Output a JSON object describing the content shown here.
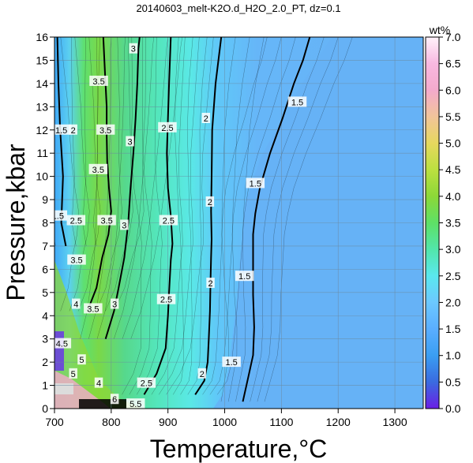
{
  "chart_data": {
    "type": "heatmap",
    "title": "20140603_melt-K2O.d_H2O_2.0_PT, dz=0.1",
    "xlabel": "Temperature,°C",
    "ylabel": "Pressure,kbar",
    "xlim": [
      700,
      1350
    ],
    "ylim": [
      0,
      16
    ],
    "x_ticks": [
      "700",
      "800",
      "900",
      "1000",
      "1100",
      "1200",
      "1300"
    ],
    "y_ticks": [
      "0",
      "1",
      "2",
      "3",
      "4",
      "5",
      "6",
      "7",
      "8",
      "9",
      "10",
      "11",
      "12",
      "13",
      "14",
      "15",
      "16"
    ],
    "grid": true,
    "colorbar": {
      "label": "wt%",
      "range": [
        0,
        7
      ],
      "ticks": [
        "0.0",
        "0.5",
        "1.0",
        "1.5",
        "2.0",
        "2.5",
        "3.0",
        "3.5",
        "4.0",
        "4.5",
        "5.0",
        "5.5",
        "6.0",
        "6.5",
        "7.0"
      ],
      "colors": [
        "#6a1ee6",
        "#3a6ae0",
        "#3a9ef2",
        "#5aaeff",
        "#6cc8ff",
        "#5ae8ee",
        "#52e6aa",
        "#5ee066",
        "#8cd838",
        "#bce040",
        "#e6d85e",
        "#f2c49a",
        "#f4aacc",
        "#f8b8e0",
        "#fff2fa"
      ]
    },
    "contours": [
      {
        "level": 1.5,
        "points": [
          [
            1032,
            0.3
          ],
          [
            1042,
            1.4
          ],
          [
            1050,
            2.3
          ],
          [
            1052,
            3.5
          ],
          [
            1050,
            4.9
          ],
          [
            1050,
            6.3
          ],
          [
            1050,
            7.5
          ],
          [
            1054,
            8.4
          ],
          [
            1062,
            9.5
          ],
          [
            1080,
            11.0
          ],
          [
            1102,
            12.5
          ],
          [
            1122,
            14.0
          ],
          [
            1138,
            15.0
          ],
          [
            1150,
            16
          ]
        ]
      },
      {
        "level": 2.0,
        "points": [
          [
            948,
            0.6
          ],
          [
            964,
            1.2
          ],
          [
            970,
            2.0
          ],
          [
            972,
            3.0
          ],
          [
            974,
            4.2
          ],
          [
            975,
            5.5
          ],
          [
            976,
            6.5
          ],
          [
            977,
            7.3
          ],
          [
            976,
            8.5
          ],
          [
            977,
            10.0
          ],
          [
            978,
            12.0
          ],
          [
            984,
            14.0
          ],
          [
            994,
            16
          ]
        ]
      },
      {
        "level": 2.5,
        "points": [
          [
            858,
            0.6
          ],
          [
            880,
            1.5
          ],
          [
            896,
            2.6
          ],
          [
            900,
            4.0
          ],
          [
            902,
            5.0
          ],
          [
            905,
            6.4
          ],
          [
            908,
            7.1
          ],
          [
            905,
            8.3
          ],
          [
            900,
            9.5
          ],
          [
            898,
            11.0
          ],
          [
            900,
            12.5
          ],
          [
            902,
            14.0
          ],
          [
            905,
            16
          ]
        ]
      },
      {
        "level": 3.0,
        "points": [
          [
            790,
            3.0
          ],
          [
            805,
            4.2
          ],
          [
            813,
            5.2
          ],
          [
            823,
            6.5
          ],
          [
            830,
            8.0
          ],
          [
            834,
            9.5
          ],
          [
            839,
            11.0
          ],
          [
            843,
            12.5
          ],
          [
            846,
            14.0
          ],
          [
            848,
            15.5
          ],
          [
            850,
            16
          ]
        ]
      },
      {
        "level": 3.5,
        "points": [
          [
            758,
            4.2
          ],
          [
            774,
            5.2
          ],
          [
            784,
            6.5
          ],
          [
            795,
            7.5
          ],
          [
            800,
            8.5
          ],
          [
            796,
            9.5
          ],
          [
            793,
            10.6
          ],
          [
            792,
            11.8
          ],
          [
            792,
            13.0
          ],
          [
            789,
            14.5
          ],
          [
            786,
            16
          ]
        ]
      },
      {
        "level": 1.5,
        "points": [
          [
            705,
            16
          ],
          [
            707,
            14.0
          ],
          [
            710,
            12.0
          ],
          [
            715,
            10.0
          ],
          [
            712,
            8.0
          ],
          [
            720,
            7.0
          ]
        ]
      }
    ],
    "contour_labels": [
      {
        "text": "1.5",
        "x": 1128,
        "y": 13.2
      },
      {
        "text": "1.5",
        "x": 1054,
        "y": 9.7
      },
      {
        "text": "1.5",
        "x": 1035,
        "y": 5.7
      },
      {
        "text": "1.5",
        "x": 1012,
        "y": 2.0
      },
      {
        "text": "2",
        "x": 967,
        "y": 12.5
      },
      {
        "text": "2",
        "x": 974,
        "y": 8.9
      },
      {
        "text": "2",
        "x": 975,
        "y": 5.4
      },
      {
        "text": "2",
        "x": 960,
        "y": 1.5
      },
      {
        "text": "2.5",
        "x": 899,
        "y": 12.1
      },
      {
        "text": "2.5",
        "x": 901,
        "y": 8.1
      },
      {
        "text": "2.5",
        "x": 897,
        "y": 4.7
      },
      {
        "text": "2.5",
        "x": 862,
        "y": 1.1
      },
      {
        "text": "3",
        "x": 839,
        "y": 15.5
      },
      {
        "text": "3",
        "x": 833,
        "y": 11.5
      },
      {
        "text": "3",
        "x": 823,
        "y": 7.9
      },
      {
        "text": "3",
        "x": 806,
        "y": 4.5
      },
      {
        "text": "3.5",
        "x": 778,
        "y": 14.1
      },
      {
        "text": "3.5",
        "x": 790,
        "y": 12.0
      },
      {
        "text": "3.5",
        "x": 777,
        "y": 10.3
      },
      {
        "text": "3.5",
        "x": 792,
        "y": 8.1
      },
      {
        "text": "3.5",
        "x": 739,
        "y": 6.4
      },
      {
        "text": "3.5",
        "x": 768,
        "y": 4.3
      },
      {
        "text": "1.5",
        "x": 712,
        "y": 12.0
      },
      {
        "text": "1.5",
        "x": 706,
        "y": 8.3
      },
      {
        "text": "2",
        "x": 733,
        "y": 12.0
      },
      {
        "text": "2.5",
        "x": 738,
        "y": 8.1
      },
      {
        "text": "4",
        "x": 738,
        "y": 4.5
      },
      {
        "text": "4.5",
        "x": 713,
        "y": 2.8
      },
      {
        "text": "5",
        "x": 748,
        "y": 2.1
      },
      {
        "text": "6",
        "x": 806,
        "y": 0.4
      },
      {
        "text": "5.5",
        "x": 843,
        "y": 0.2
      },
      {
        "text": "5",
        "x": 733,
        "y": 1.5
      },
      {
        "text": "4",
        "x": 778,
        "y": 1.1
      }
    ]
  }
}
